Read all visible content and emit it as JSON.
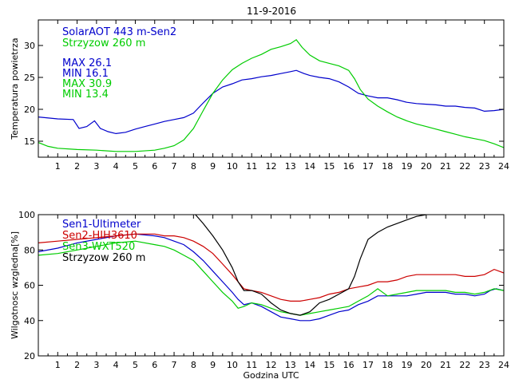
{
  "title": "11-9-2016",
  "chart_data": [
    {
      "type": "line",
      "ylabel": "Temperatura powietrza",
      "xlabel": "",
      "xlim": [
        0,
        24
      ],
      "ylim": [
        12.5,
        34
      ],
      "yticks": [
        15,
        20,
        25,
        30
      ],
      "xticks": [
        1,
        2,
        3,
        4,
        5,
        6,
        7,
        8,
        9,
        10,
        11,
        12,
        13,
        14,
        15,
        16,
        17,
        18,
        19,
        20,
        21,
        22,
        23,
        24
      ],
      "legend": [
        {
          "text": "SolarAOT 443 m-Sen2",
          "color": "#0000cc"
        },
        {
          "text": "Strzyzow 260 m",
          "color": "#00cc00"
        }
      ],
      "annotations": [
        {
          "text": "MAX 26.1",
          "color": "#0000cc"
        },
        {
          "text": "MIN 16.1",
          "color": "#0000cc"
        },
        {
          "text": "MAX 30.9",
          "color": "#00cc00"
        },
        {
          "text": "MIN 13.4",
          "color": "#00cc00"
        }
      ],
      "series": [
        {
          "name": "SolarAOT 443 m-Sen2",
          "color": "#0000cc",
          "x": [
            0,
            1,
            1.8,
            2.1,
            2.5,
            2.9,
            3.2,
            3.6,
            4,
            4.5,
            5,
            5.5,
            6,
            6.5,
            7,
            7.5,
            8,
            8.5,
            9,
            9.5,
            10,
            10.5,
            11,
            11.5,
            12,
            12.5,
            13,
            13.3,
            13.7,
            14,
            14.5,
            15,
            15.5,
            16,
            16.5,
            17,
            17.5,
            18,
            18.5,
            19,
            19.5,
            20,
            20.5,
            21,
            21.5,
            22,
            22.5,
            23,
            23.5,
            24
          ],
          "y": [
            18.8,
            18.5,
            18.4,
            17.0,
            17.3,
            18.2,
            17.0,
            16.5,
            16.2,
            16.4,
            16.9,
            17.3,
            17.7,
            18.1,
            18.4,
            18.7,
            19.4,
            21.0,
            22.5,
            23.5,
            24.0,
            24.6,
            24.8,
            25.1,
            25.3,
            25.6,
            25.9,
            26.1,
            25.6,
            25.3,
            25.0,
            24.8,
            24.3,
            23.5,
            22.5,
            22.1,
            21.8,
            21.8,
            21.5,
            21.1,
            20.9,
            20.8,
            20.7,
            20.5,
            20.5,
            20.3,
            20.2,
            19.7,
            19.8,
            20.0
          ]
        },
        {
          "name": "Strzyzow 260 m",
          "color": "#00cc00",
          "x": [
            0,
            0.5,
            1,
            2,
            3,
            4,
            5,
            6,
            6.5,
            7,
            7.5,
            8,
            8.5,
            9,
            9.5,
            10,
            10.5,
            11,
            11.5,
            12,
            12.5,
            13,
            13.3,
            13.6,
            14,
            14.5,
            15,
            15.5,
            16,
            16.3,
            16.6,
            17,
            17.5,
            18,
            18.5,
            19,
            19.5,
            20,
            20.5,
            21,
            21.5,
            22,
            22.5,
            23,
            23.5,
            24
          ],
          "y": [
            14.8,
            14.2,
            13.9,
            13.7,
            13.6,
            13.4,
            13.4,
            13.6,
            13.9,
            14.3,
            15.2,
            17.0,
            19.8,
            22.5,
            24.6,
            26.2,
            27.2,
            28.0,
            28.6,
            29.4,
            29.8,
            30.3,
            30.9,
            29.7,
            28.5,
            27.6,
            27.2,
            26.8,
            26.1,
            24.8,
            23.1,
            21.6,
            20.5,
            19.6,
            18.8,
            18.2,
            17.7,
            17.3,
            16.9,
            16.5,
            16.1,
            15.7,
            15.4,
            15.1,
            14.6,
            14.0
          ]
        }
      ]
    },
    {
      "type": "line",
      "ylabel": "Wilgotnosc wzgledna[%]",
      "xlabel": "Godzina UTC",
      "xlim": [
        0,
        24
      ],
      "ylim": [
        20,
        100
      ],
      "yticks": [
        20,
        40,
        60,
        80,
        100
      ],
      "xticks": [
        1,
        2,
        3,
        4,
        5,
        6,
        7,
        8,
        9,
        10,
        11,
        12,
        13,
        14,
        15,
        16,
        17,
        18,
        19,
        20,
        21,
        22,
        23,
        24
      ],
      "legend": [
        {
          "text": "Sen1-Ultimeter",
          "color": "#0000cc"
        },
        {
          "text": "Sen2-HIH3610",
          "color": "#cc0000"
        },
        {
          "text": "Sen3-WXT520",
          "color": "#00cc00"
        },
        {
          "text": "Strzyzow 260 m",
          "color": "#000000"
        }
      ],
      "series": [
        {
          "name": "Sen1-Ultimeter",
          "color": "#0000cc",
          "x": [
            0,
            1,
            2,
            3,
            4,
            5,
            6,
            6.5,
            7,
            7.5,
            8,
            8.5,
            9,
            9.5,
            10,
            10.3,
            10.6,
            11,
            11.5,
            12,
            12.5,
            13,
            13.5,
            14,
            14.5,
            15,
            15.5,
            16,
            16.5,
            17,
            17.5,
            18,
            18.5,
            19,
            19.5,
            20,
            20.5,
            21,
            21.5,
            22,
            22.5,
            23,
            23.3,
            23.6,
            24
          ],
          "y": [
            79,
            81,
            84,
            86,
            88,
            89,
            88,
            87,
            85,
            83,
            79,
            74,
            68,
            62,
            56,
            52,
            49,
            50,
            48,
            45,
            42,
            41,
            40,
            40,
            41,
            43,
            45,
            46,
            49,
            51,
            54,
            54,
            54,
            54,
            55,
            56,
            56,
            56,
            55,
            55,
            54,
            55,
            57,
            58,
            57
          ]
        },
        {
          "name": "Sen2-HIH3610",
          "color": "#cc0000",
          "x": [
            0,
            1,
            2,
            3,
            4,
            5,
            6,
            6.5,
            7,
            7.5,
            8,
            8.5,
            9,
            9.5,
            10,
            10.3,
            10.6,
            11,
            11.5,
            12,
            12.5,
            13,
            13.5,
            14,
            14.5,
            15,
            15.5,
            16,
            16.5,
            17,
            17.5,
            18,
            18.5,
            19,
            19.5,
            20,
            20.5,
            21,
            21.5,
            22,
            22.5,
            23,
            23.5,
            24
          ],
          "y": [
            84,
            85,
            86,
            87,
            88,
            89,
            89,
            88,
            88,
            87,
            85,
            82,
            78,
            72,
            66,
            62,
            58,
            57,
            56,
            54,
            52,
            51,
            51,
            52,
            53,
            55,
            56,
            58,
            59,
            60,
            62,
            62,
            63,
            65,
            66,
            66,
            66,
            66,
            66,
            65,
            65,
            66,
            69,
            67
          ]
        },
        {
          "name": "Sen3-WXT520",
          "color": "#00cc00",
          "x": [
            0,
            1,
            2,
            3,
            4,
            5,
            6,
            6.5,
            7,
            7.5,
            8,
            8.5,
            9,
            9.5,
            10,
            10.3,
            10.6,
            11,
            11.5,
            12,
            12.5,
            13,
            13.5,
            14,
            14.5,
            15,
            15.5,
            16,
            16.5,
            17,
            17.5,
            18,
            18.5,
            19,
            19.5,
            20,
            20.5,
            21,
            21.5,
            22,
            22.5,
            23,
            23.5,
            24
          ],
          "y": [
            77,
            78,
            80,
            82,
            84,
            85,
            83,
            82,
            80,
            77,
            74,
            68,
            62,
            56,
            51,
            47,
            48,
            50,
            49,
            47,
            45,
            44,
            43,
            44,
            45,
            46,
            47,
            48,
            51,
            54,
            58,
            54,
            55,
            56,
            57,
            57,
            57,
            57,
            56,
            56,
            55,
            56,
            58,
            57
          ]
        },
        {
          "name": "Strzyzow 260 m",
          "color": "#000000",
          "x": [
            8.1,
            8.5,
            9,
            9.5,
            10,
            10.3,
            10.6,
            11,
            11.5,
            12,
            12.5,
            13,
            13.5,
            14,
            14.5,
            15,
            15.5,
            16,
            16.3,
            16.6,
            17,
            17.5,
            18,
            18.5,
            19,
            19.5,
            20
          ],
          "y": [
            100,
            95,
            88,
            80,
            70,
            62,
            57,
            57,
            55,
            50,
            46,
            44,
            43,
            45,
            50,
            52,
            55,
            58,
            65,
            75,
            86,
            90,
            93,
            95,
            97,
            99,
            100
          ]
        }
      ]
    }
  ]
}
